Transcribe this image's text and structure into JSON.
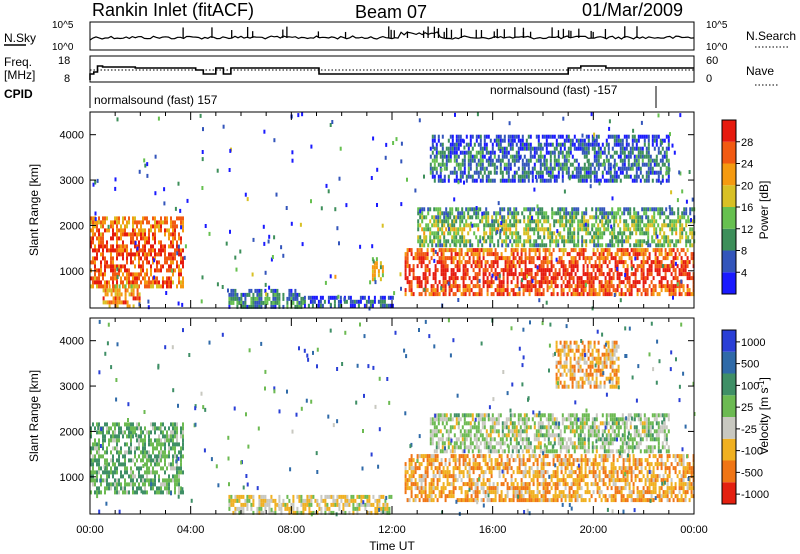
{
  "header": {
    "station": "Rankin Inlet (fitACF)",
    "beam": "Beam 07",
    "date": "01/Mar/2009"
  },
  "top_panels": {
    "nsky_label": "N.Sky",
    "nsky_ticks": [
      "10^5",
      "10^0"
    ],
    "nsearch_label": "N.Search",
    "nsearch_ticks": [
      "10^5",
      "10^0"
    ],
    "freq_label_1": "Freq.",
    "freq_label_2": "[MHz]",
    "freq_ticks": [
      "18",
      "8"
    ],
    "nave_label": "Nave",
    "nave_ticks": [
      "60",
      "0"
    ],
    "cpid_label": "CPID",
    "cpid_segments": [
      {
        "label": "normalsound (fast) 157",
        "start_hour": 0.0
      },
      {
        "label": "normalsound (fast) -157",
        "start_hour": 22.4
      }
    ]
  },
  "chart_data": [
    {
      "type": "heatmap",
      "name": "power",
      "ylabel": "Slant Range [km]",
      "xlabel": "",
      "x_ticks": [
        "00:00",
        "04:00",
        "08:00",
        "12:00",
        "16:00",
        "20:00",
        "00:00"
      ],
      "xlim_hours": [
        0,
        24
      ],
      "ylim": [
        180,
        4500
      ],
      "y_ticks": [
        1000,
        2000,
        3000,
        4000
      ],
      "colorbar": {
        "label": "Power [dB]",
        "ticks": [
          4,
          8,
          12,
          16,
          20,
          24,
          28
        ],
        "range": [
          0,
          30
        ],
        "colors": [
          "#1a1aff",
          "#3355bb",
          "#3d8f5a",
          "#66c04f",
          "#d8c025",
          "#f59a10",
          "#f25a12",
          "#e61a0e"
        ]
      },
      "regions": [
        {
          "t": [
            0.0,
            3.7
          ],
          "r": [
            700,
            2200
          ],
          "level": 0.9
        },
        {
          "t": [
            0.5,
            2.0
          ],
          "r": [
            200,
            700
          ],
          "level": 0.8
        },
        {
          "t": [
            5.5,
            8.5
          ],
          "r": [
            200,
            600
          ],
          "level": 0.35
        },
        {
          "t": [
            8.5,
            12.0
          ],
          "r": [
            200,
            450
          ],
          "level": 0.25
        },
        {
          "t": [
            11.2,
            11.6
          ],
          "r": [
            800,
            1300
          ],
          "level": 0.6
        },
        {
          "t": [
            12.5,
            24.0
          ],
          "r": [
            500,
            1500
          ],
          "level": 0.95
        },
        {
          "t": [
            13.0,
            24.0
          ],
          "r": [
            1550,
            2400
          ],
          "level": 0.5
        },
        {
          "t": [
            13.5,
            23.0
          ],
          "r": [
            3000,
            4000
          ],
          "level": 0.3
        }
      ]
    },
    {
      "type": "heatmap",
      "name": "velocity",
      "ylabel": "Slant Range [km]",
      "xlabel": "Time UT",
      "x_ticks": [
        "00:00",
        "04:00",
        "08:00",
        "12:00",
        "16:00",
        "20:00",
        "00:00"
      ],
      "xlim_hours": [
        0,
        24
      ],
      "ylim": [
        180,
        4500
      ],
      "y_ticks": [
        1000,
        2000,
        3000,
        4000
      ],
      "colorbar": {
        "label": "Velocity [m s^-1]",
        "ticks": [
          "1000",
          "500",
          "100",
          "25",
          "-25",
          "-100",
          "-500",
          "-1000"
        ],
        "colors": [
          "#2a3fd6",
          "#2f6aa8",
          "#3f8f66",
          "#6cba52",
          "#c8c8c0",
          "#f0b020",
          "#f07515",
          "#e42010"
        ]
      },
      "regions": [
        {
          "t": [
            0.0,
            3.7
          ],
          "r": [
            700,
            2200
          ],
          "level": 0.4
        },
        {
          "t": [
            5.5,
            12.0
          ],
          "r": [
            200,
            600
          ],
          "level": 0.6
        },
        {
          "t": [
            12.5,
            24.0
          ],
          "r": [
            500,
            1500
          ],
          "level": 0.72
        },
        {
          "t": [
            13.5,
            23.0
          ],
          "r": [
            1600,
            2400
          ],
          "level": 0.5
        },
        {
          "t": [
            18.5,
            21.0
          ],
          "r": [
            3000,
            4000
          ],
          "level": 0.7
        }
      ]
    }
  ]
}
